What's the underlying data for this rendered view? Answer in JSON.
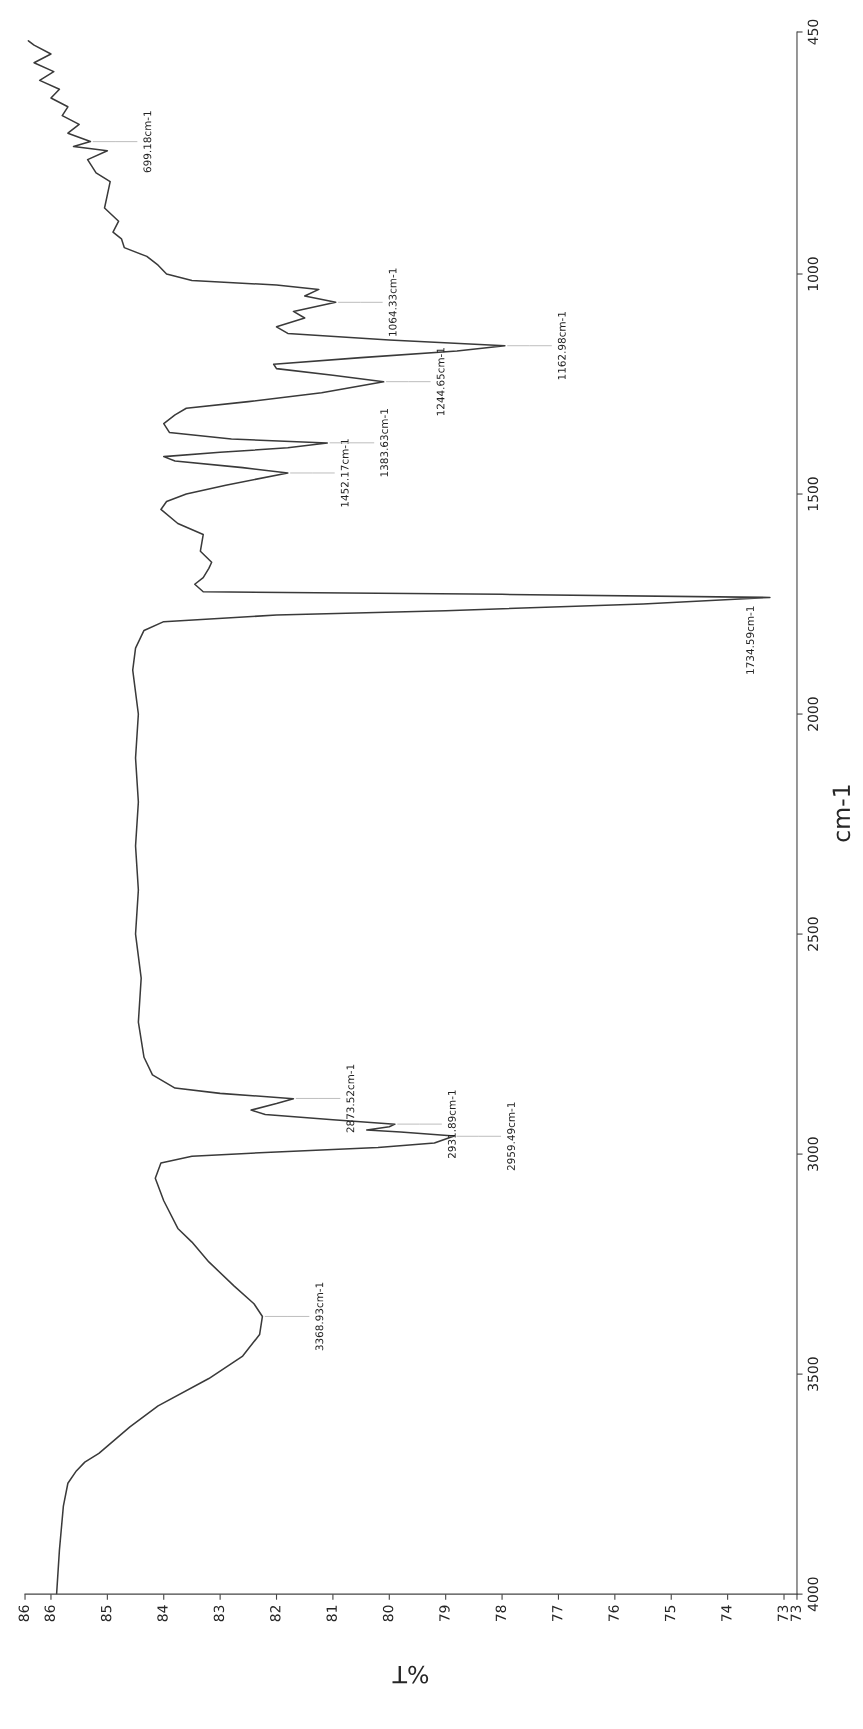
{
  "chart_data": {
    "type": "line",
    "xlabel": "%T",
    "ylabel": "cm-1",
    "series": [
      {
        "color": "#3a3a3a",
        "x": [
          85.9,
          85.85,
          85.78,
          85.7,
          85.55,
          85.4,
          85.15,
          84.6,
          84.1,
          83.2,
          82.6,
          82.3,
          82.25,
          82.4,
          82.75,
          83.2,
          83.5,
          83.75,
          84.0,
          84.15,
          84.05,
          83.5,
          82.0,
          80.2,
          79.2,
          78.85,
          79.8,
          80.4,
          80.0,
          79.9,
          81.0,
          82.2,
          82.45,
          82.0,
          81.7,
          83.0,
          83.8,
          84.2,
          84.35,
          84.45,
          84.4,
          84.5,
          84.45,
          84.5,
          84.45,
          84.5,
          84.45,
          84.55,
          84.5,
          84.35,
          84.0,
          82.0,
          79.0,
          75.5,
          73.25,
          78.0,
          83.3,
          83.45,
          83.3,
          83.2,
          83.15,
          83.35,
          83.3,
          83.75,
          84.05,
          83.95,
          83.6,
          82.9,
          81.8,
          82.6,
          83.8,
          84.0,
          83.0,
          81.8,
          81.1,
          82.8,
          83.9,
          84.0,
          83.8,
          83.6,
          82.5,
          81.2,
          80.1,
          81.0,
          82.0,
          82.05,
          80.5,
          78.8,
          77.95,
          80.0,
          81.8,
          82.0,
          81.5,
          81.7,
          80.95,
          81.5,
          81.25,
          82.0,
          83.5,
          83.95,
          84.1,
          84.3,
          84.7,
          84.75,
          84.9,
          84.8,
          85.05,
          85.0,
          84.95,
          85.2,
          85.35,
          85.0,
          85.6,
          85.3,
          85.7,
          85.5,
          85.8,
          85.7,
          86.0,
          85.85,
          86.2,
          85.95,
          86.3,
          86.0,
          86.3,
          86.4
        ],
        "values": [
          4000,
          3900,
          3800,
          3748,
          3720,
          3700,
          3680,
          3620,
          3572,
          3510,
          3459,
          3410,
          3369,
          3340,
          3300,
          3245,
          3200,
          3169,
          3106,
          3055,
          3020,
          3005,
          2995,
          2985,
          2975,
          2959,
          2950,
          2945,
          2938,
          2932,
          2922,
          2910,
          2900,
          2885,
          2874,
          2862,
          2850,
          2820,
          2780,
          2700,
          2600,
          2500,
          2400,
          2300,
          2200,
          2100,
          2000,
          1900,
          1850,
          1810,
          1790,
          1775,
          1765,
          1750,
          1735,
          1728,
          1722,
          1705,
          1690,
          1669,
          1655,
          1630,
          1592,
          1567,
          1535,
          1517,
          1500,
          1480,
          1452,
          1440,
          1425,
          1415,
          1405,
          1395,
          1384,
          1375,
          1360,
          1340,
          1320,
          1305,
          1290,
          1270,
          1245,
          1230,
          1215,
          1205,
          1190,
          1175,
          1163,
          1150,
          1135,
          1120,
          1100,
          1085,
          1064,
          1050,
          1035,
          1025,
          1015,
          1000,
          980,
          960,
          940,
          920,
          905,
          880,
          850,
          820,
          790,
          770,
          740,
          720,
          710,
          699,
          680,
          660,
          640,
          620,
          600,
          580,
          560,
          540,
          520,
          500,
          480,
          470
        ]
      }
    ],
    "ylim": [
      4000,
      450
    ],
    "yticks": [
      4000,
      3500,
      3000,
      2500,
      2000,
      1500,
      1000,
      450
    ],
    "xlim": [
      86.46,
      72.77
    ],
    "xticks": [
      {
        "value": 86.46,
        "label": "86"
      },
      86,
      85,
      84,
      83,
      82,
      81,
      80,
      79,
      78,
      77,
      76,
      75,
      74,
      73,
      {
        "value": 72.77,
        "label": "73"
      }
    ],
    "grid": false,
    "legend": false,
    "annotations": [
      {
        "text": "3368.93cm-1",
        "y": 3368.93,
        "x": 82.25
      },
      {
        "text": "2873.52cm-1",
        "y": 2873.52,
        "x": 81.7
      },
      {
        "text": "2931.89cm-1",
        "y": 2931.89,
        "x": 79.9
      },
      {
        "text": "2959.49cm-1",
        "y": 2959.49,
        "x": 78.85
      },
      {
        "text": "1734.59cm-1",
        "y": 1734.59,
        "x": 73.25
      },
      {
        "text": "1452.17cm-1",
        "y": 1452.17,
        "x": 81.8
      },
      {
        "text": "1383.63cm-1",
        "y": 1383.63,
        "x": 81.1
      },
      {
        "text": "1244.65cm-1",
        "y": 1244.65,
        "x": 80.1
      },
      {
        "text": "1162.98cm-1",
        "y": 1162.98,
        "x": 77.95
      },
      {
        "text": "1064.33cm-1",
        "y": 1064.33,
        "x": 80.95
      },
      {
        "text": "699.18cm-1",
        "y": 699.18,
        "x": 85.3
      }
    ]
  }
}
